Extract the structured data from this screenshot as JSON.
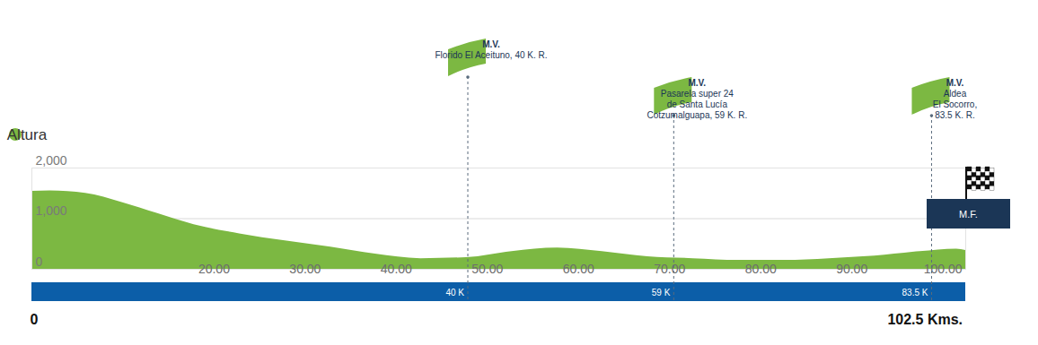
{
  "chart_data": {
    "type": "area",
    "x": [
      0,
      2,
      5.9,
      9.9,
      13.8,
      17.8,
      22.8,
      27.8,
      32.8,
      37.7,
      42.7,
      47.7,
      52.7,
      57.7,
      62.6,
      67.6,
      72.6,
      77.6,
      82.6,
      87.5,
      92.5,
      97.5,
      101.5,
      102.5
    ],
    "series": [
      {
        "name": "Altura",
        "color": "#7cb842",
        "values": [
          1540,
          1550,
          1500,
          1320,
          1100,
          880,
          700,
          560,
          440,
          300,
          210,
          230,
          350,
          420,
          350,
          250,
          210,
          175,
          175,
          210,
          260,
          350,
          400,
          370
        ]
      }
    ],
    "xlim": [
      0,
      102.5
    ],
    "ylim": [
      0,
      2000
    ],
    "xticks": [
      {
        "value": 20,
        "label": "20.00"
      },
      {
        "value": 30,
        "label": "30.00"
      },
      {
        "value": 40,
        "label": "40.00"
      },
      {
        "value": 50,
        "label": "50.00"
      },
      {
        "value": 60,
        "label": "60.00"
      },
      {
        "value": 70,
        "label": "70.00"
      },
      {
        "value": 80,
        "label": "80.00"
      },
      {
        "value": 90,
        "label": "90.00"
      },
      {
        "value": 100,
        "label": "100.00"
      }
    ],
    "yticks": [
      0,
      {
        "value": 1000,
        "label": "1,000"
      },
      {
        "value": 2000,
        "label": "2,000"
      }
    ],
    "grid": true,
    "legend": "top-left",
    "markers": [
      {
        "x": 47.9,
        "title": "M.V.",
        "lines": [
          "Florido El Aceituno, 40 K. R."
        ],
        "bar_label": "40 K"
      },
      {
        "x": 70.5,
        "title": "M.V.",
        "lines": [
          "Pasarela super 24",
          "de Santa Lucía",
          "Cotzumalguapa, 59 K. R."
        ],
        "bar_label": "59 K"
      },
      {
        "x": 98.8,
        "title": "M.V.",
        "lines": [
          "Aldea",
          "El Socorro,",
          "83.5 K. R."
        ],
        "bar_label": "83.5 K"
      }
    ],
    "finish_label": "M.F.",
    "distance_bar": {
      "start_label": "0",
      "end_label": "102.5 Kms."
    }
  }
}
